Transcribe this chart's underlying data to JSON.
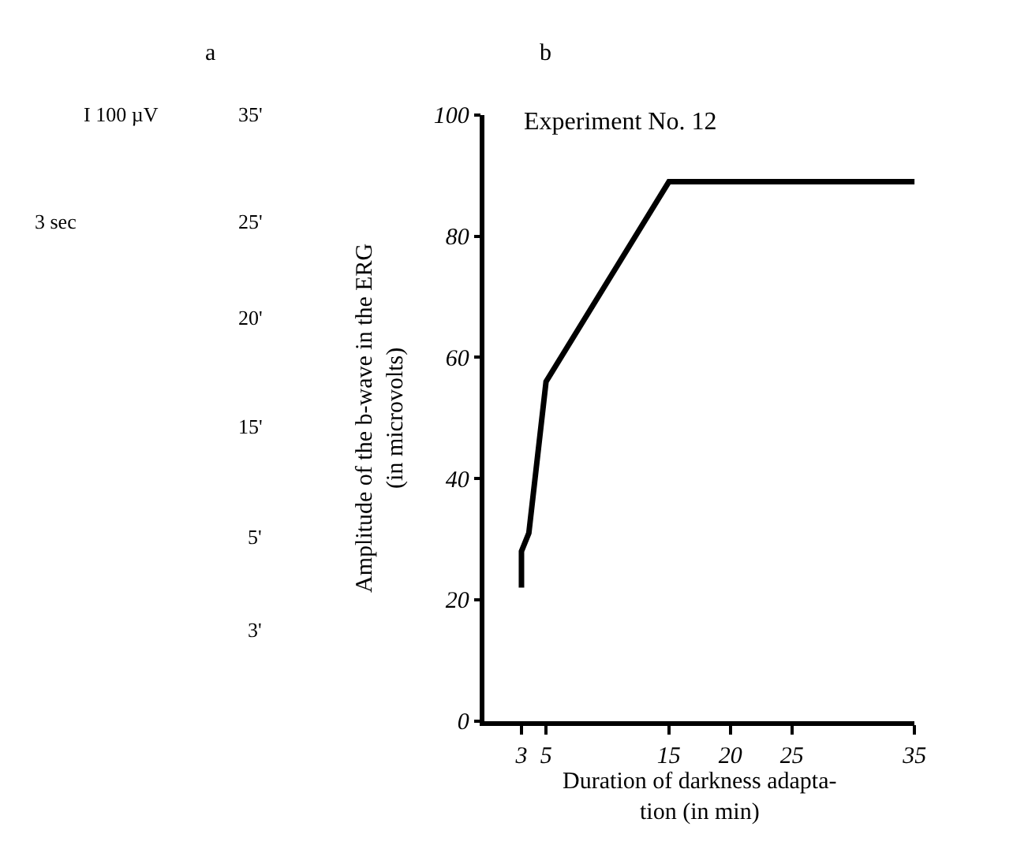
{
  "chart_data": [
    {
      "type": "other",
      "title": "a",
      "annotations": [
        "I 100 µV",
        "3 sec",
        "35'",
        "25'",
        "20'",
        "15'",
        "5'",
        "3'"
      ]
    },
    {
      "type": "line",
      "title": "b",
      "subtitle": "Experiment No. 12",
      "xlabel": "Duration of darkness adapta-\ntion (in min)",
      "ylabel": "Amplitude of the b-wave in the ERG\n(in microvolts)",
      "x": [
        3,
        3,
        3.6,
        5,
        15,
        35
      ],
      "series": [
        {
          "color": "#000000",
          "values": [
            22,
            28,
            31,
            56,
            89,
            89
          ]
        }
      ],
      "xlim": [
        0,
        35
      ],
      "xticks": [
        3,
        5,
        15,
        20,
        25,
        35
      ],
      "ylim": [
        0,
        100
      ],
      "yticks": [
        0,
        20,
        40,
        60,
        80,
        100
      ],
      "marker": "none",
      "line_style": "solid"
    }
  ]
}
